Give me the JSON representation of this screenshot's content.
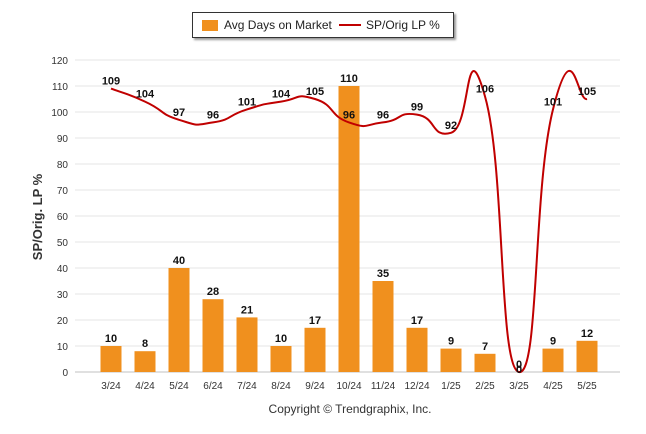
{
  "legend": {
    "bar_label": "Avg Days on Market",
    "line_label": "SP/Orig LP %"
  },
  "copyright": "Copyright © Trendgraphix, Inc.",
  "chart_data": {
    "type": "bar+line",
    "ylabel": "SP/Orig. LP %",
    "ylim": [
      0,
      120
    ],
    "yticks": [
      0,
      10,
      20,
      30,
      40,
      50,
      60,
      70,
      80,
      90,
      100,
      110,
      120
    ],
    "categories": [
      "3/24",
      "4/24",
      "5/24",
      "6/24",
      "7/24",
      "8/24",
      "9/24",
      "10/24",
      "11/24",
      "12/24",
      "1/25",
      "2/25",
      "3/25",
      "4/25",
      "5/25"
    ],
    "series": [
      {
        "name": "Avg Days on Market",
        "type": "bar",
        "color": "#f0901e",
        "values": [
          10,
          8,
          40,
          28,
          21,
          10,
          17,
          110,
          35,
          17,
          9,
          7,
          0,
          9,
          12
        ]
      },
      {
        "name": "SP/Orig LP %",
        "type": "line",
        "color": "#c00000",
        "values": [
          109,
          104,
          97,
          96,
          101,
          104,
          105,
          96,
          96,
          99,
          92,
          106,
          0,
          101,
          105
        ]
      }
    ],
    "grid": true,
    "legend_position": "top-center"
  }
}
